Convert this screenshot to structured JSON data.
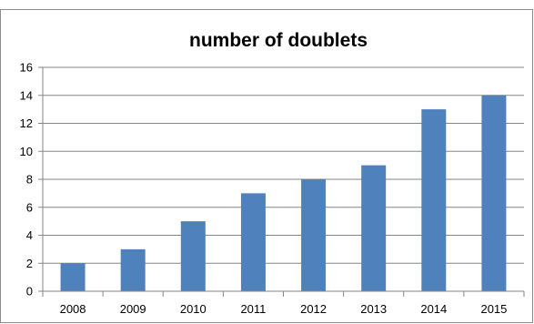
{
  "top_cropped_text": "",
  "chart_data": {
    "type": "bar",
    "title": "number of doublets",
    "categories": [
      "2008",
      "2009",
      "2010",
      "2011",
      "2012",
      "2013",
      "2014",
      "2015"
    ],
    "values": [
      2,
      3,
      5,
      7,
      8,
      9,
      13,
      14
    ],
    "ylim": [
      0,
      16
    ],
    "yticks": [
      0,
      2,
      4,
      6,
      8,
      10,
      12,
      14,
      16
    ],
    "xlabel": "",
    "ylabel": "",
    "grid": true,
    "colors": {
      "bar": "#4F81BD",
      "grid": "#868686",
      "axis": "#868686"
    }
  }
}
